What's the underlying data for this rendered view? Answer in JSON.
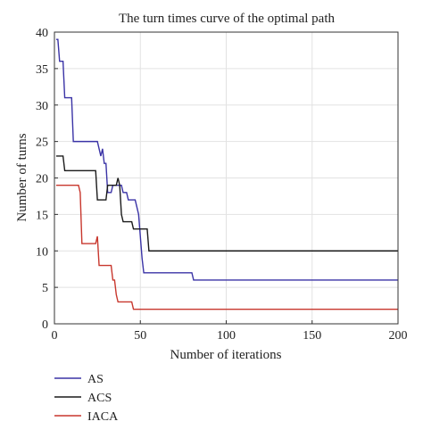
{
  "chart_data": {
    "type": "line",
    "title": "The turn times curve of the optimal path",
    "xlabel": "Number of iterations",
    "ylabel": "Number of turns",
    "xlim": [
      0,
      200
    ],
    "ylim": [
      0,
      40
    ],
    "xticks": [
      0,
      50,
      100,
      150,
      200
    ],
    "yticks": [
      0,
      5,
      10,
      15,
      20,
      25,
      30,
      35,
      40
    ],
    "grid": true,
    "legend_position": "bottom-left, below plot",
    "series": [
      {
        "name": "AS",
        "color": "#3a33a6",
        "points": [
          [
            1,
            39
          ],
          [
            2,
            39
          ],
          [
            3,
            36
          ],
          [
            5,
            36
          ],
          [
            6,
            31
          ],
          [
            10,
            31
          ],
          [
            11,
            25
          ],
          [
            25,
            25
          ],
          [
            26,
            24
          ],
          [
            27,
            23
          ],
          [
            28,
            24
          ],
          [
            29,
            22
          ],
          [
            30,
            22
          ],
          [
            31,
            18
          ],
          [
            33,
            18
          ],
          [
            34,
            19
          ],
          [
            39,
            19
          ],
          [
            40,
            18
          ],
          [
            42,
            18
          ],
          [
            43,
            17
          ],
          [
            47,
            17
          ],
          [
            48,
            16
          ],
          [
            49,
            15
          ],
          [
            50,
            12
          ],
          [
            51,
            9
          ],
          [
            52,
            7
          ],
          [
            53,
            7
          ],
          [
            80,
            7
          ],
          [
            81,
            6
          ],
          [
            200,
            6
          ]
        ]
      },
      {
        "name": "ACS",
        "color": "#1a1a1a",
        "points": [
          [
            1,
            23
          ],
          [
            5,
            23
          ],
          [
            6,
            21
          ],
          [
            24,
            21
          ],
          [
            25,
            17
          ],
          [
            30,
            17
          ],
          [
            31,
            19
          ],
          [
            36,
            19
          ],
          [
            37,
            20
          ],
          [
            38,
            19
          ],
          [
            39,
            15
          ],
          [
            40,
            14
          ],
          [
            45,
            14
          ],
          [
            46,
            13
          ],
          [
            54,
            13
          ],
          [
            55,
            10
          ],
          [
            200,
            10
          ]
        ]
      },
      {
        "name": "IACA",
        "color": "#c8372d",
        "points": [
          [
            1,
            19
          ],
          [
            14,
            19
          ],
          [
            15,
            18
          ],
          [
            16,
            11
          ],
          [
            24,
            11
          ],
          [
            25,
            12
          ],
          [
            26,
            8
          ],
          [
            33,
            8
          ],
          [
            34,
            6
          ],
          [
            35,
            6
          ],
          [
            36,
            4
          ],
          [
            37,
            3
          ],
          [
            45,
            3
          ],
          [
            46,
            2
          ],
          [
            200,
            2
          ]
        ]
      }
    ]
  }
}
